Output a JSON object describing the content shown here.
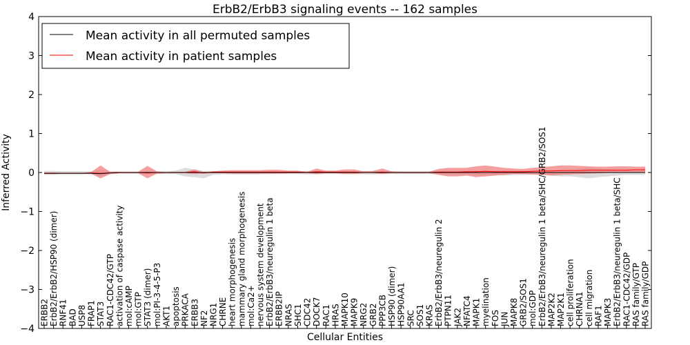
{
  "chart_data": {
    "type": "line",
    "title": "ErbB2/ErbB3 signaling events -- 162 samples",
    "xlabel": "Cellular Entities",
    "ylabel": "Inferred Activity",
    "ylim": [
      -4,
      4
    ],
    "yticks": [
      -4,
      -3,
      -2,
      -1,
      0,
      1,
      2,
      3,
      4
    ],
    "grid": false,
    "legend_position": "top-left",
    "colors": {
      "permuted": "#000000",
      "patient": "#ff0000",
      "patient_band": "#f08080",
      "permuted_band": "#c0c0c0"
    },
    "categories": [
      "ERBB2",
      "ErbB2/ErbB2/HSP90 (dimer)",
      "RNF41",
      "BAD",
      "USP8",
      "FRAP1",
      "STAT3",
      "RAC1-CDC42/GTP",
      "activation of caspase activity",
      "mol:cAMP",
      "mol:GTP",
      "STAT3 (dimer)",
      "mol:PI-3-4-5-P3",
      "AKT1",
      "apoptosis",
      "PRKACA",
      "ERBB3",
      "NF2",
      "NRG1",
      "CHRNE",
      "heart morphogenesis",
      "mammary gland morphogenesis",
      "mol:Ca2+",
      "nervous system development",
      "ErbB2/ErbB3/neuregulin 1 beta",
      "ERBB2IP",
      "NRAS",
      "SHC1",
      "CDC42",
      "DOCK7",
      "RAC1",
      "HRAS",
      "MAPK10",
      "MAPK9",
      "NRG2",
      "GRB2",
      "PPP3CB",
      "HSP90 (dimer)",
      "HSP90AA1",
      "SRC",
      "SOS1",
      "KRAS",
      "ErbB2/ErbB3/neuregulin 2",
      "PTPN11",
      "JAK2",
      "NFATC4",
      "MAPK1",
      "myelination",
      "FOS",
      "JUN",
      "MAPK8",
      "GRB2/SOS1",
      "mol:GDP",
      "ErbB2/ErbB3/neuregulin 1 beta/SHC/GRB2/SOS1",
      "MAP2K2",
      "MAP2K1",
      "cell proliferation",
      "CHRNA1",
      "cell migration",
      "RAF1",
      "MAPK3",
      "ErbB2/ErbB3/neuregulin 1 beta/SHC",
      "RAC1-CDC42/GDP",
      "RAS family/GTP",
      "RAS family/GDP"
    ],
    "series": [
      {
        "name": "Mean activity in all permuted samples",
        "values": [
          -0.02,
          -0.02,
          -0.02,
          -0.02,
          -0.02,
          -0.02,
          -0.03,
          -0.01,
          0,
          0,
          0,
          0,
          0,
          0,
          0,
          0,
          0,
          0,
          0,
          0,
          0,
          0,
          0,
          0,
          0,
          0,
          0,
          0,
          0,
          0,
          0,
          0,
          0,
          0,
          0,
          0,
          0,
          0,
          0,
          0,
          0,
          0,
          0,
          0,
          0,
          0,
          0,
          0,
          0,
          0,
          0,
          0,
          0,
          0,
          0,
          0,
          0,
          0,
          0,
          0,
          0,
          0,
          0,
          0,
          0
        ],
        "band_low": [
          -0.06,
          -0.06,
          -0.05,
          -0.05,
          -0.05,
          -0.05,
          -0.1,
          -0.05,
          -0.03,
          -0.03,
          -0.03,
          -0.05,
          -0.04,
          -0.04,
          -0.04,
          -0.1,
          -0.12,
          -0.15,
          -0.06,
          -0.05,
          -0.05,
          -0.05,
          -0.05,
          -0.05,
          -0.04,
          -0.04,
          -0.04,
          -0.04,
          -0.05,
          -0.05,
          -0.04,
          -0.04,
          -0.04,
          -0.04,
          -0.05,
          -0.05,
          -0.04,
          -0.04,
          -0.04,
          -0.04,
          -0.04,
          -0.04,
          -0.05,
          -0.06,
          -0.06,
          -0.06,
          -0.08,
          -0.08,
          -0.06,
          -0.08,
          -0.06,
          -0.06,
          -0.06,
          -0.06,
          -0.08,
          -0.1,
          -0.1,
          -0.12,
          -0.15,
          -0.12,
          -0.1,
          -0.08,
          -0.06,
          -0.06,
          -0.06
        ],
        "band_high": [
          0.04,
          0.04,
          0.03,
          0.03,
          0.03,
          0.03,
          0.08,
          0.04,
          0.02,
          0.02,
          0.02,
          0.05,
          0.03,
          0.03,
          0.05,
          0.12,
          0.08,
          0.04,
          0.04,
          0.04,
          0.04,
          0.04,
          0.04,
          0.04,
          0.03,
          0.03,
          0.03,
          0.03,
          0.04,
          0.04,
          0.03,
          0.03,
          0.03,
          0.03,
          0.04,
          0.04,
          0.03,
          0.03,
          0.03,
          0.03,
          0.03,
          0.03,
          0.04,
          0.05,
          0.05,
          0.05,
          0.06,
          0.06,
          0.05,
          0.06,
          0.05,
          0.05,
          0.05,
          0.05,
          0.06,
          0.06,
          0.08,
          0.1,
          0.12,
          0.1,
          0.08,
          0.07,
          0.06,
          0.06,
          0.06
        ]
      },
      {
        "name": "Mean activity in patient samples",
        "values": [
          -0.02,
          -0.02,
          -0.02,
          -0.02,
          -0.02,
          -0.01,
          -0.02,
          -0.01,
          0,
          0,
          0,
          -0.01,
          0,
          0,
          0,
          0,
          0.02,
          -0.01,
          0.01,
          0.01,
          0.01,
          0.01,
          0.01,
          0.01,
          0.01,
          0.01,
          0.01,
          0.01,
          0,
          0.02,
          0.01,
          0.01,
          0.01,
          0.01,
          0,
          0,
          0.01,
          0,
          0,
          0,
          0,
          0,
          0.01,
          0.01,
          0.01,
          0.02,
          0.02,
          0.03,
          0.02,
          0.02,
          0.02,
          0.02,
          0.03,
          0.04,
          0.04,
          0.05,
          0.05,
          0.05,
          0.06,
          0.06,
          0.06,
          0.06,
          0.06,
          0.07,
          0.07
        ],
        "band_low": [
          -0.04,
          -0.04,
          -0.03,
          -0.03,
          -0.03,
          -0.03,
          -0.15,
          -0.04,
          -0.02,
          -0.02,
          -0.02,
          -0.15,
          -0.03,
          -0.02,
          -0.02,
          -0.02,
          -0.04,
          -0.03,
          -0.02,
          -0.02,
          -0.03,
          -0.03,
          -0.03,
          -0.03,
          -0.03,
          -0.03,
          -0.02,
          -0.02,
          -0.02,
          -0.04,
          -0.02,
          -0.02,
          -0.04,
          -0.04,
          -0.02,
          -0.02,
          -0.04,
          -0.02,
          -0.02,
          -0.02,
          -0.02,
          -0.02,
          -0.06,
          -0.1,
          -0.1,
          -0.08,
          -0.12,
          -0.1,
          -0.08,
          -0.06,
          -0.04,
          -0.04,
          -0.05,
          -0.06,
          -0.08,
          -0.06,
          -0.05,
          -0.04,
          -0.03,
          -0.02,
          -0.01,
          0,
          0,
          0.01,
          0.01
        ],
        "band_high": [
          0,
          0,
          -0.01,
          -0.01,
          -0.01,
          0.01,
          0.18,
          0.02,
          0.02,
          0.02,
          0.02,
          0.17,
          0.03,
          0.01,
          0.02,
          0.02,
          0.08,
          0.01,
          0.03,
          0.05,
          0.06,
          0.06,
          0.06,
          0.06,
          0.07,
          0.07,
          0.05,
          0.05,
          0.02,
          0.1,
          0.05,
          0.05,
          0.08,
          0.08,
          0.03,
          0.04,
          0.1,
          0.03,
          0.02,
          0.02,
          0.02,
          0.02,
          0.09,
          0.12,
          0.12,
          0.12,
          0.16,
          0.18,
          0.15,
          0.12,
          0.1,
          0.09,
          0.12,
          0.14,
          0.16,
          0.18,
          0.18,
          0.17,
          0.16,
          0.15,
          0.15,
          0.16,
          0.16,
          0.15,
          0.15
        ]
      }
    ]
  }
}
